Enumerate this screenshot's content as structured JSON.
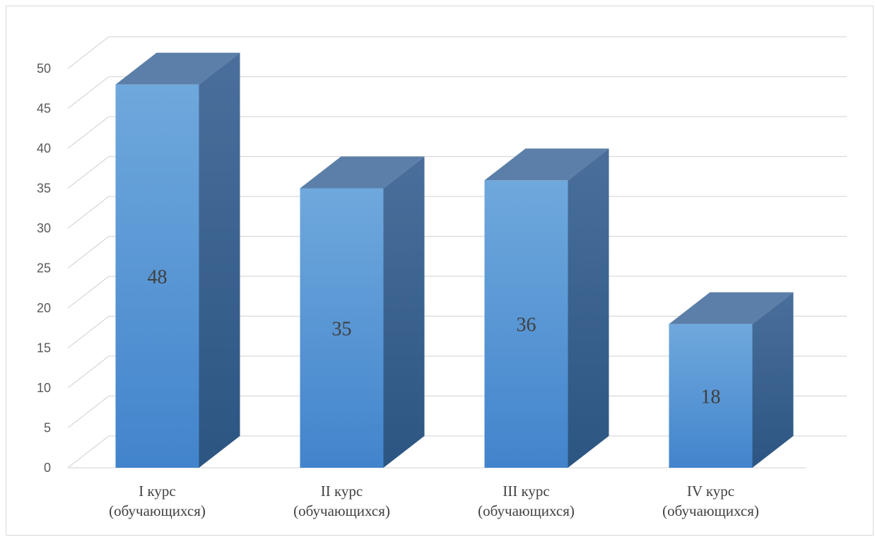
{
  "chart_data": {
    "type": "bar",
    "style": "3d-column",
    "categories": [
      [
        "I курс",
        "(обучающихся)"
      ],
      [
        "II курс",
        "(обучающихся)"
      ],
      [
        "III курс",
        "(обучающихся)"
      ],
      [
        "IV курс",
        "(обучающихся)"
      ]
    ],
    "values": [
      48,
      35,
      36,
      18
    ],
    "data_labels": [
      "48",
      "35",
      "36",
      "18"
    ],
    "ylim": [
      0,
      50
    ],
    "yticks": [
      0,
      5,
      10,
      15,
      20,
      25,
      30,
      35,
      40,
      45,
      50
    ],
    "grid": true,
    "legend": "none",
    "title": "",
    "xlabel": "",
    "ylabel": "",
    "colors": {
      "bar_front_top": "#6fa8dc",
      "bar_front_bottom": "#4284cc",
      "bar_side_top": "#4a6f9c",
      "bar_side_bottom": "#2c5582",
      "bar_top": "#5b7fa8",
      "grid": "#d9d9d9"
    }
  }
}
